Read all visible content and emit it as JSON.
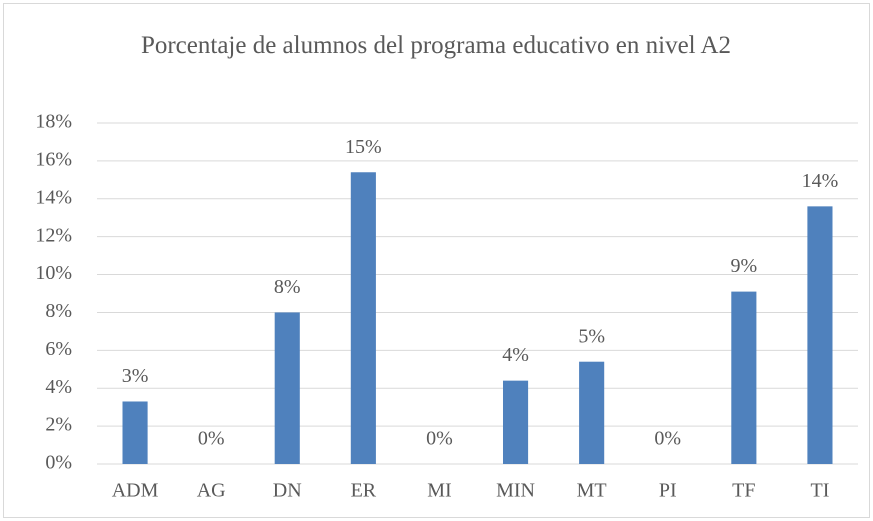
{
  "chart_data": {
    "type": "bar",
    "title": "Porcentaje de alumnos del programa educativo en nivel A2",
    "categories": [
      "ADM",
      "AG",
      "DN",
      "ER",
      "MI",
      "MIN",
      "MT",
      "PI",
      "TF",
      "TI"
    ],
    "values": [
      3.3,
      0,
      8.0,
      15.4,
      0,
      4.4,
      5.4,
      0,
      9.1,
      13.6
    ],
    "value_labels": [
      "3%",
      "0%",
      "8%",
      "15%",
      "0%",
      "4%",
      "5%",
      "0%",
      "9%",
      "14%"
    ],
    "color": "#4f81bd",
    "ylim": [
      0,
      18
    ],
    "yticks": [
      {
        "value": 0,
        "label": "0%"
      },
      {
        "value": 2,
        "label": "2%"
      },
      {
        "value": 4,
        "label": "4%"
      },
      {
        "value": 6,
        "label": "6%"
      },
      {
        "value": 8,
        "label": "8%"
      },
      {
        "value": 10,
        "label": "10%"
      },
      {
        "value": 12,
        "label": "12%"
      },
      {
        "value": 14,
        "label": "14%"
      },
      {
        "value": 16,
        "label": "16%"
      },
      {
        "value": 18,
        "label": "18%"
      }
    ],
    "grid": true
  }
}
